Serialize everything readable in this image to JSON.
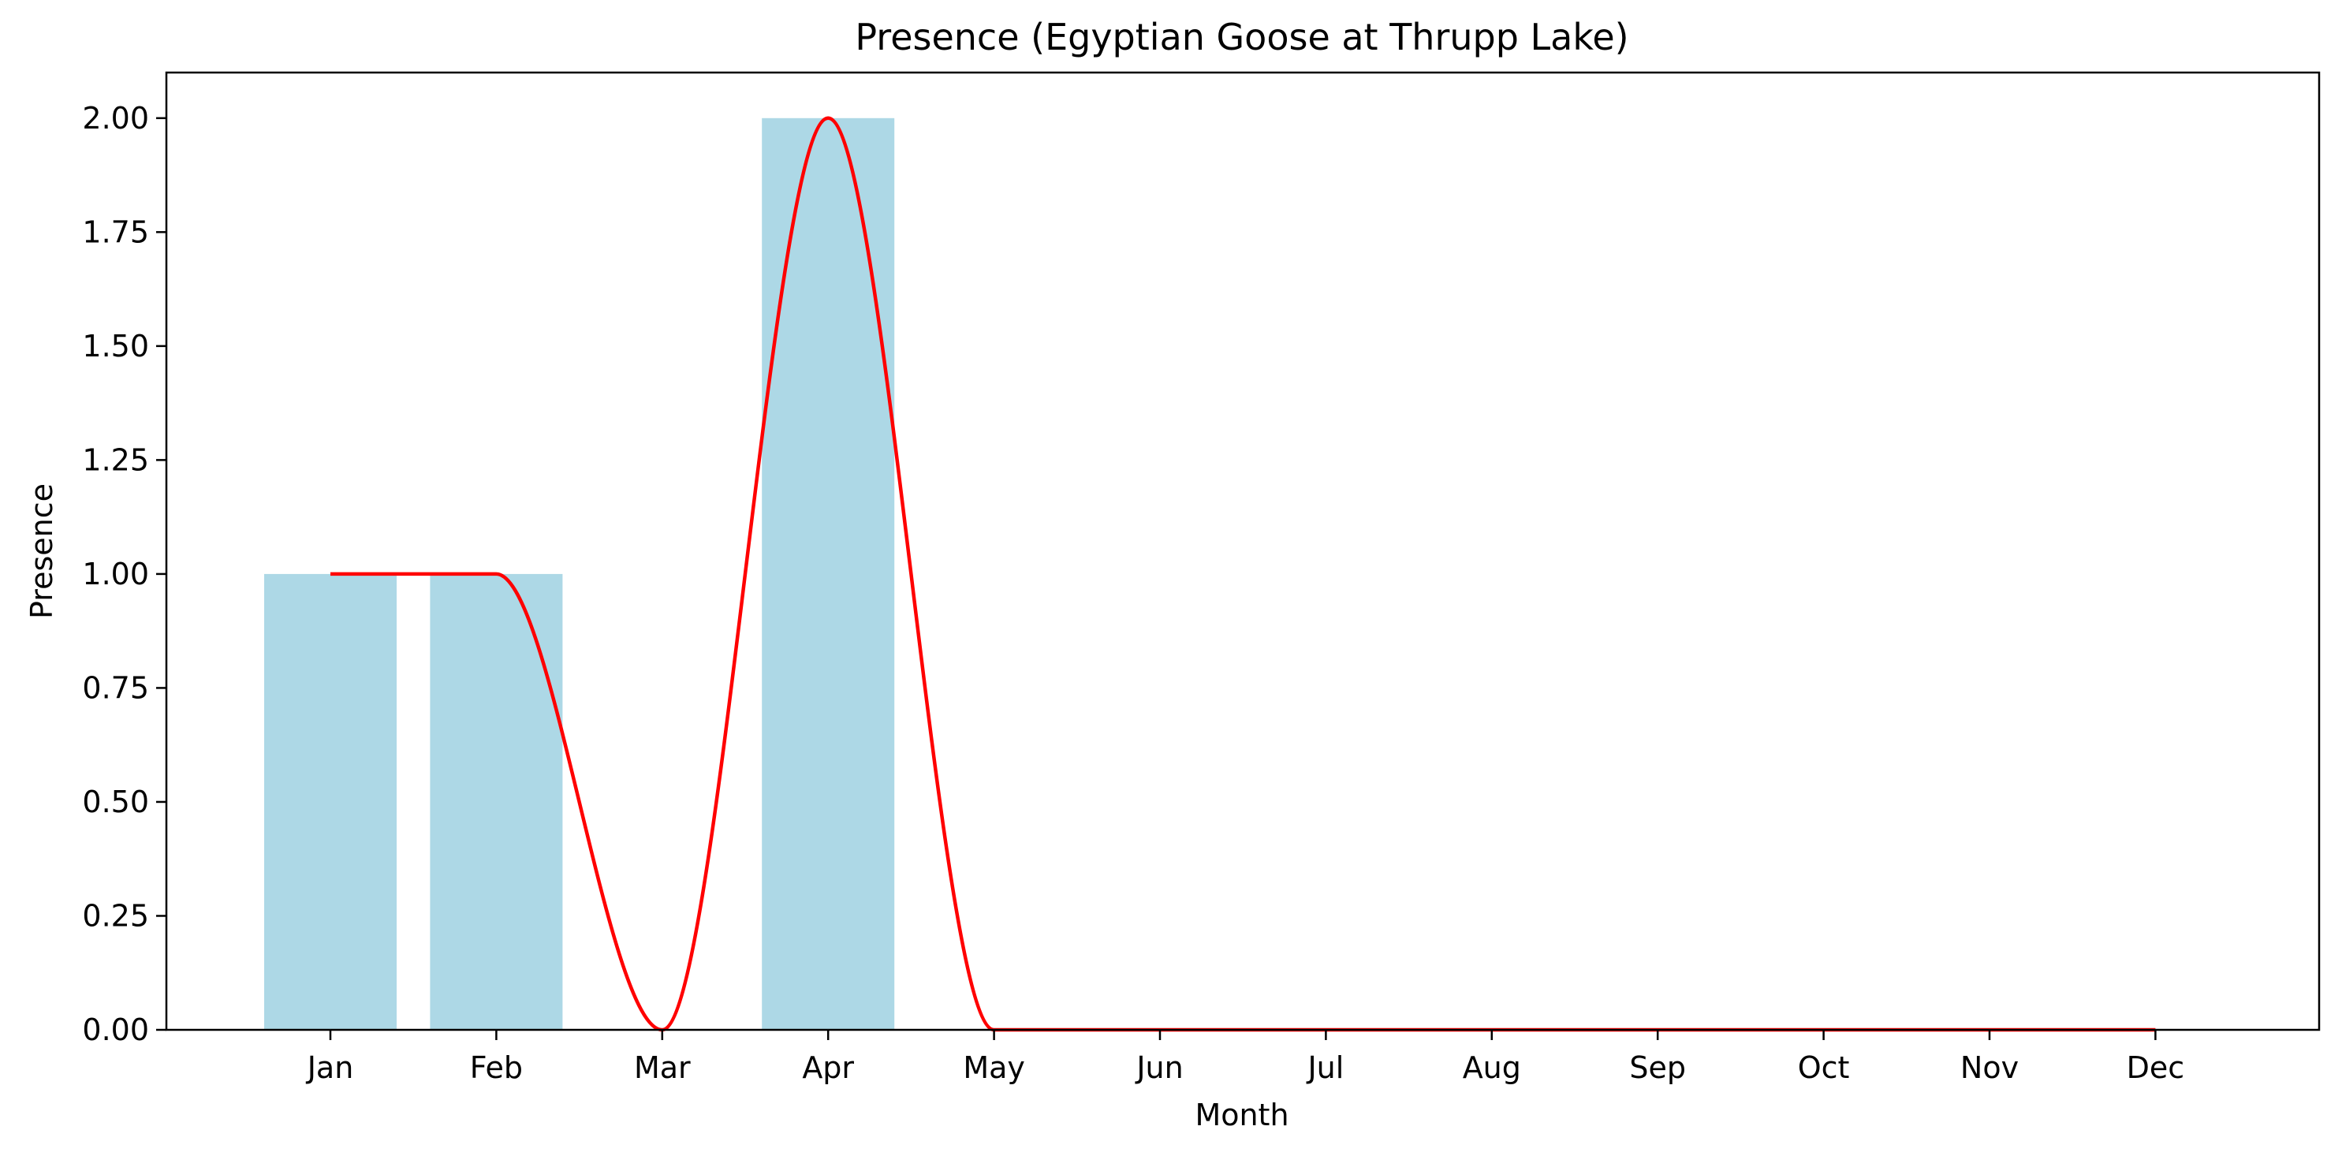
{
  "chart_data": {
    "type": "bar",
    "title": "Presence (Egyptian Goose at Thrupp Lake)",
    "xlabel": "Month",
    "ylabel": "Presence",
    "categories": [
      "Jan",
      "Feb",
      "Mar",
      "Apr",
      "May",
      "Jun",
      "Jul",
      "Aug",
      "Sep",
      "Oct",
      "Nov",
      "Dec"
    ],
    "values": [
      1,
      1,
      0,
      2,
      0,
      0,
      0,
      0,
      0,
      0,
      0,
      0
    ],
    "ylim": [
      0,
      2.1
    ],
    "yticks": [
      "0.00",
      "0.25",
      "0.50",
      "0.75",
      "1.00",
      "1.25",
      "1.50",
      "1.75",
      "2.00"
    ],
    "grid": false,
    "colors": {
      "bar": "#add8e6",
      "line": "#ff0000"
    },
    "overlay": {
      "type": "line",
      "style": "smooth-curve",
      "values": [
        1,
        1,
        0,
        2,
        0,
        0,
        0,
        0,
        0,
        0,
        0,
        0
      ]
    }
  }
}
